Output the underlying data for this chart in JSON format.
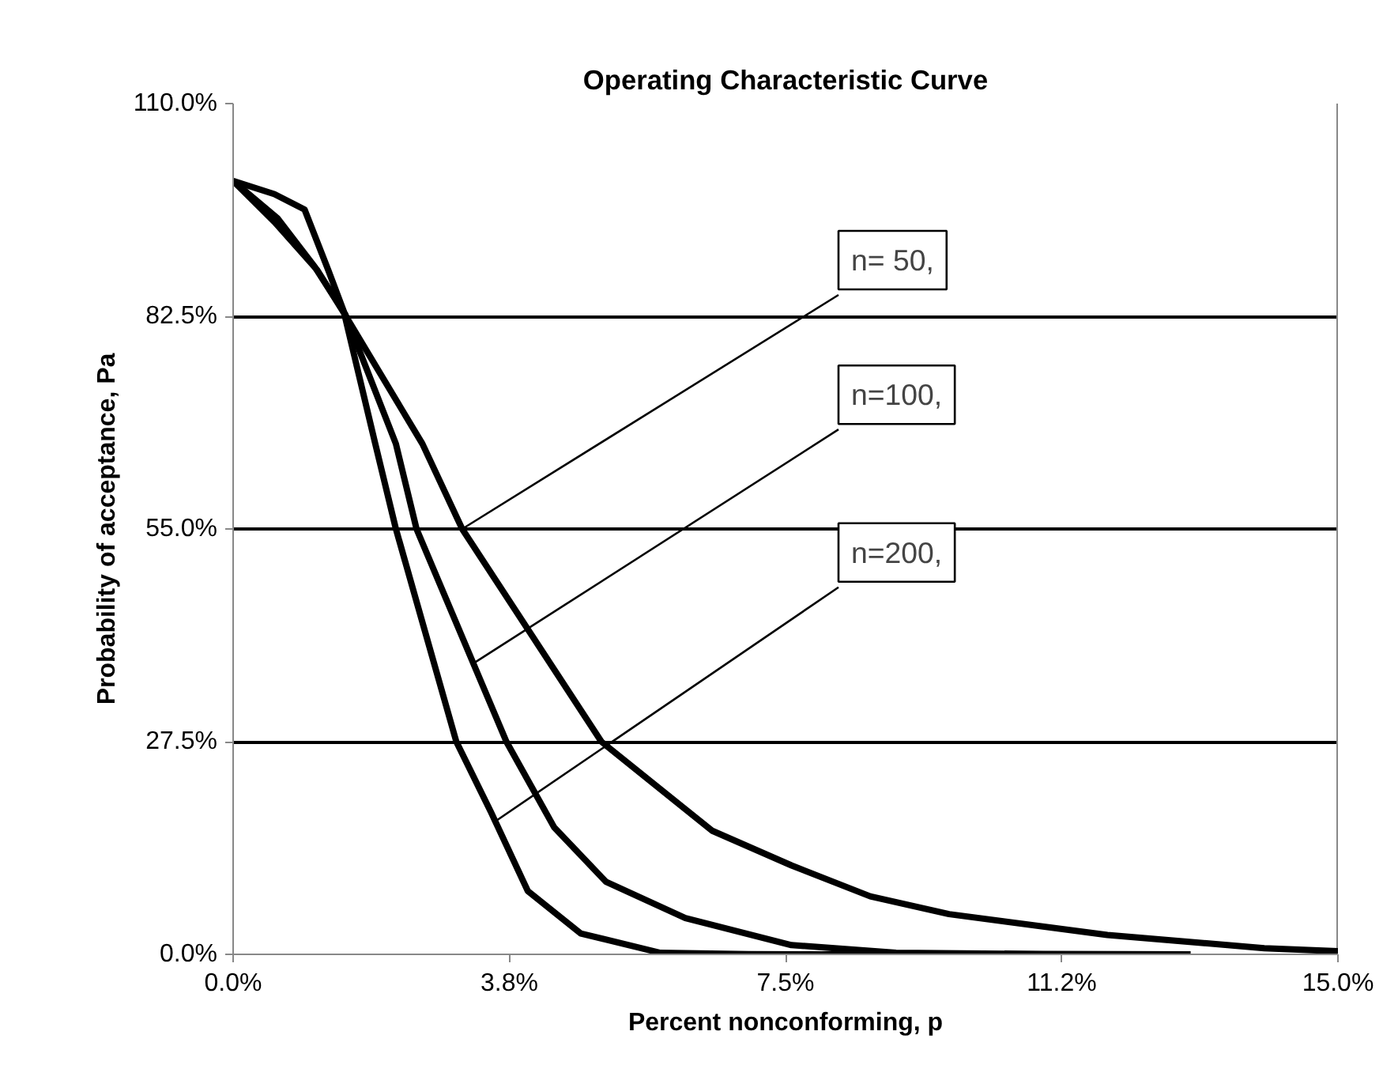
{
  "chart_data": {
    "type": "line",
    "title": "Operating Characteristic Curve",
    "xlabel": "Percent nonconforming, p",
    "ylabel": "Probability of acceptance, Pa",
    "xlim": [
      0,
      15
    ],
    "ylim": [
      0,
      110
    ],
    "xticks": [
      {
        "value": 0,
        "label": "0.0%"
      },
      {
        "value": 3.75,
        "label": "3.8%"
      },
      {
        "value": 7.5,
        "label": "7.5%"
      },
      {
        "value": 11.25,
        "label": "11.2%"
      },
      {
        "value": 15,
        "label": "15.0%"
      }
    ],
    "yticks": [
      {
        "value": 0,
        "label": "0.0%"
      },
      {
        "value": 27.5,
        "label": "27.5%"
      },
      {
        "value": 55,
        "label": "55.0%"
      },
      {
        "value": 82.5,
        "label": "82.5%"
      },
      {
        "value": 110,
        "label": "110.0%"
      }
    ],
    "grid": "y",
    "marker": "none",
    "line_style": "solid",
    "series": [
      {
        "color": "#000000",
        "x": [
          0,
          0.56,
          1.14,
          1.5,
          2.57,
          3.11,
          5.0,
          6.5,
          7.58,
          8.65,
          9.72,
          11.87,
          14,
          15
        ],
        "values": [
          100,
          94.7,
          88.5,
          83,
          66,
          55,
          27.5,
          16,
          11.5,
          7.5,
          5.2,
          2.5,
          0.8,
          0.4
        ]
      },
      {
        "color": "#000000",
        "x": [
          0,
          0.6,
          1.1,
          1.52,
          2.21,
          2.49,
          3.71,
          4.36,
          5.06,
          6.14,
          7.58,
          9,
          11,
          13
        ],
        "values": [
          100,
          95.2,
          89,
          82.8,
          66,
          55,
          27.5,
          16.4,
          9.4,
          4.7,
          1.2,
          0.2,
          0.05,
          0
        ]
      },
      {
        "color": "#000000",
        "x": [
          0,
          0.56,
          0.97,
          1.29,
          1.5,
          1.93,
          2.21,
          3.03,
          3.5,
          4.0,
          4.72,
          5.8,
          7,
          9
        ],
        "values": [
          100,
          98.3,
          96.3,
          88.5,
          83.2,
          66,
          55,
          27.5,
          18.4,
          8.2,
          2.7,
          0.2,
          0.02,
          0
        ]
      }
    ],
    "annotations": [
      {
        "text": "n= 50,",
        "x": 3.11,
        "y": 55
      },
      {
        "text": "n=100,",
        "x": 3.26,
        "y": 37.6
      },
      {
        "text": "n=200,",
        "x": 3.56,
        "y": 17.2
      }
    ]
  }
}
